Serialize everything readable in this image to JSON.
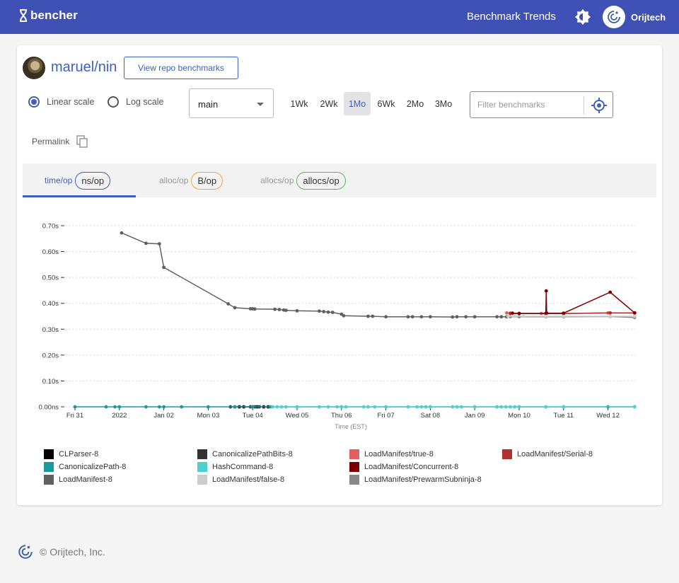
{
  "header": {
    "brand": "bencher",
    "nav_title": "Benchmark Trends",
    "user_name": "Orijtech",
    "bg_color": "#3f51b5"
  },
  "repo": {
    "name": "maruel/nin",
    "view_button": "View repo benchmarks"
  },
  "controls": {
    "scales": [
      {
        "label": "Linear scale",
        "selected": true
      },
      {
        "label": "Log scale",
        "selected": false
      }
    ],
    "branch": "main",
    "ranges": [
      "1Wk",
      "2Wk",
      "1Mo",
      "6Wk",
      "2Mo",
      "3Mo"
    ],
    "selected_range": "1Mo",
    "filter_placeholder": "Filter benchmarks",
    "permalink": "Permalink"
  },
  "tabs": [
    {
      "label": "time/op",
      "unit": "ns/op",
      "active": true,
      "color": "#3f5fbf"
    },
    {
      "label": "alloc/op",
      "unit": "B/op",
      "active": false,
      "color": "#f0a050"
    },
    {
      "label": "allocs/op",
      "unit": "allocs/op",
      "active": false,
      "color": "#5cb85c"
    }
  ],
  "chart_data": {
    "type": "line",
    "xlabel": "Time (EST)",
    "ylabel": "",
    "ylim": [
      0,
      0.7
    ],
    "yticks": [
      "0.00ns",
      "0.10s",
      "0.20s",
      "0.30s",
      "0.40s",
      "0.50s",
      "0.60s",
      "0.70s"
    ],
    "xticks": [
      "Fri 31",
      "2022",
      "Jan 02",
      "Mon 03",
      "Tue 04",
      "Wed 05",
      "Thu 06",
      "Fri 07",
      "Sat 08",
      "Jan 09",
      "Mon 10",
      "Tue 11",
      "Wed 12"
    ],
    "grid": true,
    "series": [
      {
        "name": "CLParser-8",
        "color": "#000000",
        "x": [
          3.7,
          3.8,
          4.0,
          4.1,
          4.25,
          4.35
        ],
        "values": [
          0,
          0,
          0,
          0,
          0,
          0
        ]
      },
      {
        "name": "CanonicalizePathBits-8",
        "color": "#333333",
        "x": [
          3.5,
          3.6,
          3.95,
          4.05,
          4.15
        ],
        "values": [
          0,
          0,
          0,
          0,
          0
        ]
      },
      {
        "name": "LoadManifest/true-8",
        "color": "#e06060",
        "x": [
          9.72,
          9.8,
          10.0,
          10.5,
          11.0,
          12.0,
          12.6
        ],
        "values": [
          0.363,
          0.362,
          0.361,
          0.361,
          0.361,
          0.363,
          0.363
        ]
      },
      {
        "name": "LoadManifest/Serial-8",
        "color": "#b03030",
        "x": [
          9.8,
          10.0,
          10.6,
          11.0,
          12.05,
          12.6
        ],
        "values": [
          0.361,
          0.36,
          0.36,
          0.36,
          0.363,
          0.363
        ]
      },
      {
        "name": "CanonicalizePath-8",
        "color": "#1a9a9a",
        "x": [
          0.0,
          0.7,
          0.9,
          1.0,
          1.6,
          1.9,
          2.0,
          2.4,
          3.0,
          3.6,
          4.0,
          4.4,
          5.0,
          6.0,
          7.0,
          8.0,
          9.0,
          9.5,
          10.0,
          10.6,
          11.0,
          12.0,
          12.6
        ],
        "values": [
          0,
          0,
          0,
          0,
          0,
          0,
          0,
          0,
          0,
          0,
          0,
          0,
          0,
          0,
          0,
          0,
          0,
          0,
          0,
          0,
          0,
          0,
          0
        ]
      },
      {
        "name": "HashCommand-8",
        "color": "#4fd0d0",
        "x": [
          4.45,
          4.55,
          4.65,
          4.75,
          5.0,
          5.5,
          5.7,
          5.9,
          6.0,
          6.1,
          6.5,
          6.6,
          6.75,
          7.0,
          7.5,
          7.7,
          7.8,
          7.9,
          8.0,
          8.5,
          8.6,
          8.7,
          9.0,
          9.5,
          9.6,
          9.7,
          9.8,
          9.9,
          10.0,
          10.6,
          11.0,
          12.6
        ],
        "values": [
          0,
          0,
          0,
          0,
          0,
          0,
          0,
          0,
          0,
          0,
          0,
          0,
          0,
          0,
          0,
          0,
          0,
          0,
          0,
          0,
          0,
          0,
          0,
          0,
          0,
          0,
          0,
          0,
          0,
          0,
          0,
          0
        ]
      },
      {
        "name": "LoadManifest/Concurrent-8",
        "color": "#7a0000",
        "x": [
          9.85,
          10.0,
          10.6,
          10.61,
          10.62,
          11.0,
          12.05,
          12.6
        ],
        "values": [
          0.362,
          0.361,
          0.361,
          0.448,
          0.362,
          0.362,
          0.443,
          0.363
        ]
      },
      {
        "name": "LoadManifest/PrewarmSubninja-8",
        "color": "#888888",
        "x": [
          9.6,
          9.72,
          9.8,
          10.0,
          10.6,
          11.0,
          12.05,
          12.6
        ],
        "values": [
          0.348,
          0.348,
          0.348,
          0.348,
          0.348,
          0.348,
          0.349,
          0.345
        ]
      },
      {
        "name": "LoadManifest-8",
        "color": "#606060",
        "x": [
          1.05,
          1.6,
          1.9,
          2.0,
          3.45,
          3.6,
          3.95,
          4.0,
          4.05,
          4.5,
          4.6,
          4.7,
          4.75,
          5.0,
          5.5,
          5.6,
          5.7,
          5.8,
          6.0,
          6.05,
          6.6,
          6.7,
          7.0,
          7.5,
          7.6,
          7.8,
          8.0,
          8.5,
          8.6,
          8.8,
          9.0,
          9.5,
          9.6,
          9.72
        ],
        "values": [
          0.672,
          0.632,
          0.63,
          0.539,
          0.398,
          0.383,
          0.379,
          0.379,
          0.378,
          0.377,
          0.376,
          0.374,
          0.373,
          0.371,
          0.37,
          0.368,
          0.366,
          0.365,
          0.358,
          0.352,
          0.35,
          0.35,
          0.348,
          0.348,
          0.348,
          0.348,
          0.348,
          0.347,
          0.348,
          0.348,
          0.348,
          0.348,
          0.348,
          0.348
        ]
      },
      {
        "name": "LoadManifest/false-8",
        "color": "#cccccc",
        "x": [
          9.75,
          9.9,
          10.1,
          10.6,
          11.0,
          12.05,
          12.6
        ],
        "values": [
          0.35,
          0.35,
          0.35,
          0.35,
          0.35,
          0.35,
          0.35
        ]
      }
    ]
  },
  "legend": [
    {
      "name": "CLParser-8",
      "color": "#000000"
    },
    {
      "name": "CanonicalizePathBits-8",
      "color": "#333333"
    },
    {
      "name": "LoadManifest/true-8",
      "color": "#e06060"
    },
    {
      "name": "LoadManifest/Serial-8",
      "color": "#b03030"
    },
    {
      "name": "CanonicalizePath-8",
      "color": "#1a9a9a"
    },
    {
      "name": "HashCommand-8",
      "color": "#4fd0d0"
    },
    {
      "name": "LoadManifest/Concurrent-8",
      "color": "#7a0000"
    },
    {
      "name": "LoadManifest-8",
      "color": "#606060"
    },
    {
      "name": "LoadManifest/false-8",
      "color": "#cccccc"
    },
    {
      "name": "LoadManifest/PrewarmSubninja-8",
      "color": "#888888"
    }
  ],
  "footer": {
    "text": "© Orijtech, Inc."
  }
}
